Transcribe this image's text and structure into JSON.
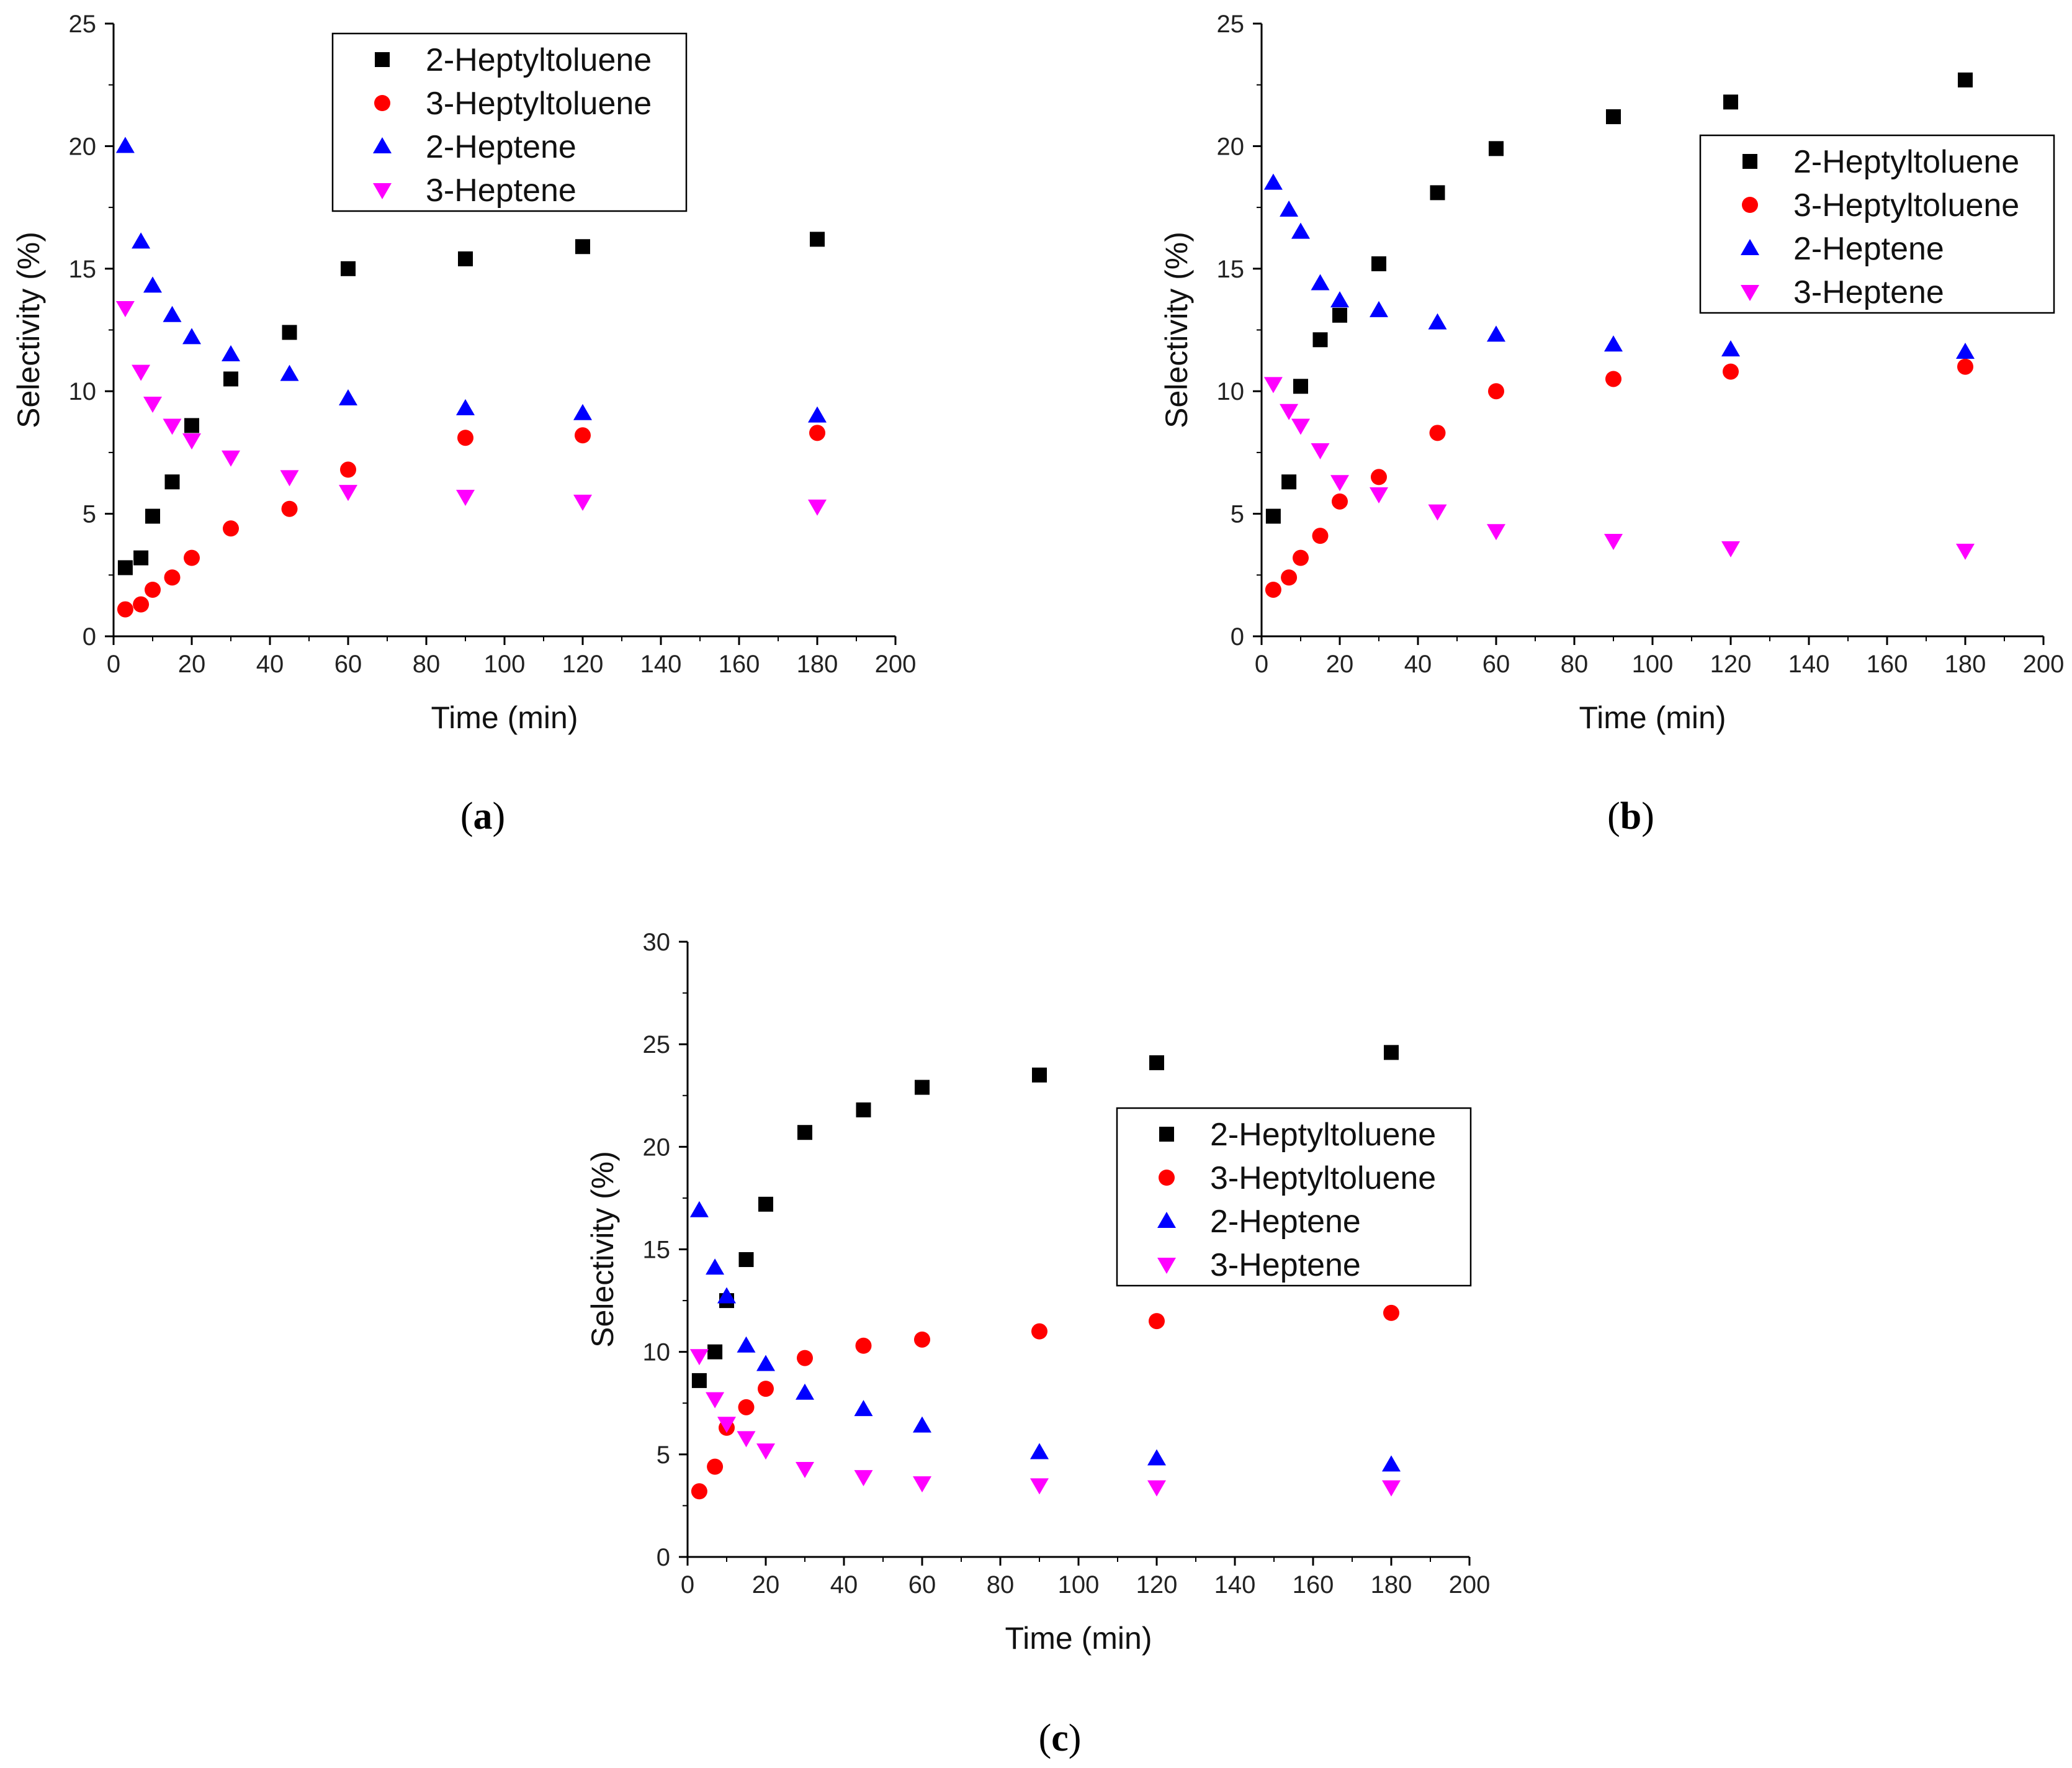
{
  "figure": {
    "panels": [
      "a",
      "b",
      "c"
    ]
  },
  "colors": {
    "2-Heptyltoluene": "#000000",
    "3-Heptyltoluene": "#ff0000",
    "2-Heptene": "#0000ff",
    "3-Heptene": "#ff00ff"
  },
  "chart_data": [
    {
      "type": "scatter",
      "panel_label": "(a)",
      "panel_letter": "a",
      "xlabel": "Time (min)",
      "ylabel": "Selectivity (%)",
      "xlim": [
        0,
        200
      ],
      "ylim": [
        0,
        25
      ],
      "xticks": [
        0,
        20,
        40,
        60,
        80,
        100,
        120,
        140,
        160,
        180,
        200
      ],
      "yticks": [
        0,
        5,
        10,
        15,
        20,
        25
      ],
      "legend_position": "top-center",
      "x": [
        3,
        7,
        10,
        15,
        20,
        30,
        45,
        60,
        90,
        120,
        180
      ],
      "series": [
        {
          "name": "2-Heptyltoluene",
          "marker": "square",
          "values": [
            2.8,
            3.2,
            4.9,
            6.3,
            8.6,
            10.5,
            12.4,
            15.0,
            15.4,
            15.9,
            16.2
          ]
        },
        {
          "name": "3-Heptyltoluene",
          "marker": "circle",
          "values": [
            1.1,
            1.3,
            1.9,
            2.4,
            3.2,
            4.4,
            5.2,
            6.8,
            8.1,
            8.2,
            8.3
          ]
        },
        {
          "name": "2-Heptene",
          "marker": "triangle-up",
          "values": [
            20.0,
            16.1,
            14.3,
            13.1,
            12.2,
            11.5,
            10.7,
            9.7,
            9.3,
            9.1,
            9.0
          ]
        },
        {
          "name": "3-Heptene",
          "marker": "triangle-down",
          "values": [
            13.4,
            10.8,
            9.5,
            8.6,
            8.0,
            7.3,
            6.5,
            5.9,
            5.7,
            5.5,
            5.3
          ]
        }
      ]
    },
    {
      "type": "scatter",
      "panel_label": "(b)",
      "panel_letter": "b",
      "xlabel": "Time (min)",
      "ylabel": "Selectivity (%)",
      "xlim": [
        0,
        200
      ],
      "ylim": [
        0,
        25
      ],
      "xticks": [
        0,
        20,
        40,
        60,
        80,
        100,
        120,
        140,
        160,
        180,
        200
      ],
      "yticks": [
        0,
        5,
        10,
        15,
        20,
        25
      ],
      "legend_position": "top-right",
      "x": [
        3,
        7,
        10,
        15,
        20,
        30,
        45,
        60,
        90,
        120,
        180
      ],
      "series": [
        {
          "name": "2-Heptyltoluene",
          "marker": "square",
          "values": [
            4.9,
            6.3,
            10.2,
            12.1,
            13.1,
            15.2,
            18.1,
            19.9,
            21.2,
            21.8,
            22.7
          ]
        },
        {
          "name": "3-Heptyltoluene",
          "marker": "circle",
          "values": [
            1.9,
            2.4,
            3.2,
            4.1,
            5.5,
            6.5,
            8.3,
            10.0,
            10.5,
            10.8,
            11.0
          ]
        },
        {
          "name": "2-Heptene",
          "marker": "triangle-up",
          "values": [
            18.5,
            17.4,
            16.5,
            14.4,
            13.7,
            13.3,
            12.8,
            12.3,
            11.9,
            11.7,
            11.6
          ]
        },
        {
          "name": "3-Heptene",
          "marker": "triangle-down",
          "values": [
            10.3,
            9.2,
            8.6,
            7.6,
            6.3,
            5.8,
            5.1,
            4.3,
            3.9,
            3.6,
            3.5
          ]
        }
      ]
    },
    {
      "type": "scatter",
      "panel_label": "(c)",
      "panel_letter": "c",
      "xlabel": "Time (min)",
      "ylabel": "Selectivity (%)",
      "xlim": [
        0,
        200
      ],
      "ylim": [
        0,
        30
      ],
      "xticks": [
        0,
        20,
        40,
        60,
        80,
        100,
        120,
        140,
        160,
        180,
        200
      ],
      "yticks": [
        0,
        5,
        10,
        15,
        20,
        25,
        30
      ],
      "legend_position": "right-center",
      "x": [
        3,
        7,
        10,
        15,
        20,
        30,
        45,
        60,
        90,
        120,
        180
      ],
      "series": [
        {
          "name": "2-Heptyltoluene",
          "marker": "square",
          "values": [
            8.6,
            10.0,
            12.5,
            14.5,
            17.2,
            20.7,
            21.8,
            22.9,
            23.5,
            24.1,
            24.6
          ]
        },
        {
          "name": "3-Heptyltoluene",
          "marker": "circle",
          "values": [
            3.2,
            4.4,
            6.3,
            7.3,
            8.2,
            9.7,
            10.3,
            10.6,
            11.0,
            11.5,
            11.9
          ]
        },
        {
          "name": "2-Heptene",
          "marker": "triangle-up",
          "values": [
            16.9,
            14.1,
            12.7,
            10.3,
            9.4,
            8.0,
            7.2,
            6.4,
            5.1,
            4.8,
            4.5
          ]
        },
        {
          "name": "3-Heptene",
          "marker": "triangle-down",
          "values": [
            9.8,
            7.7,
            6.5,
            5.8,
            5.2,
            4.3,
            3.9,
            3.6,
            3.5,
            3.4,
            3.4
          ]
        }
      ]
    }
  ]
}
